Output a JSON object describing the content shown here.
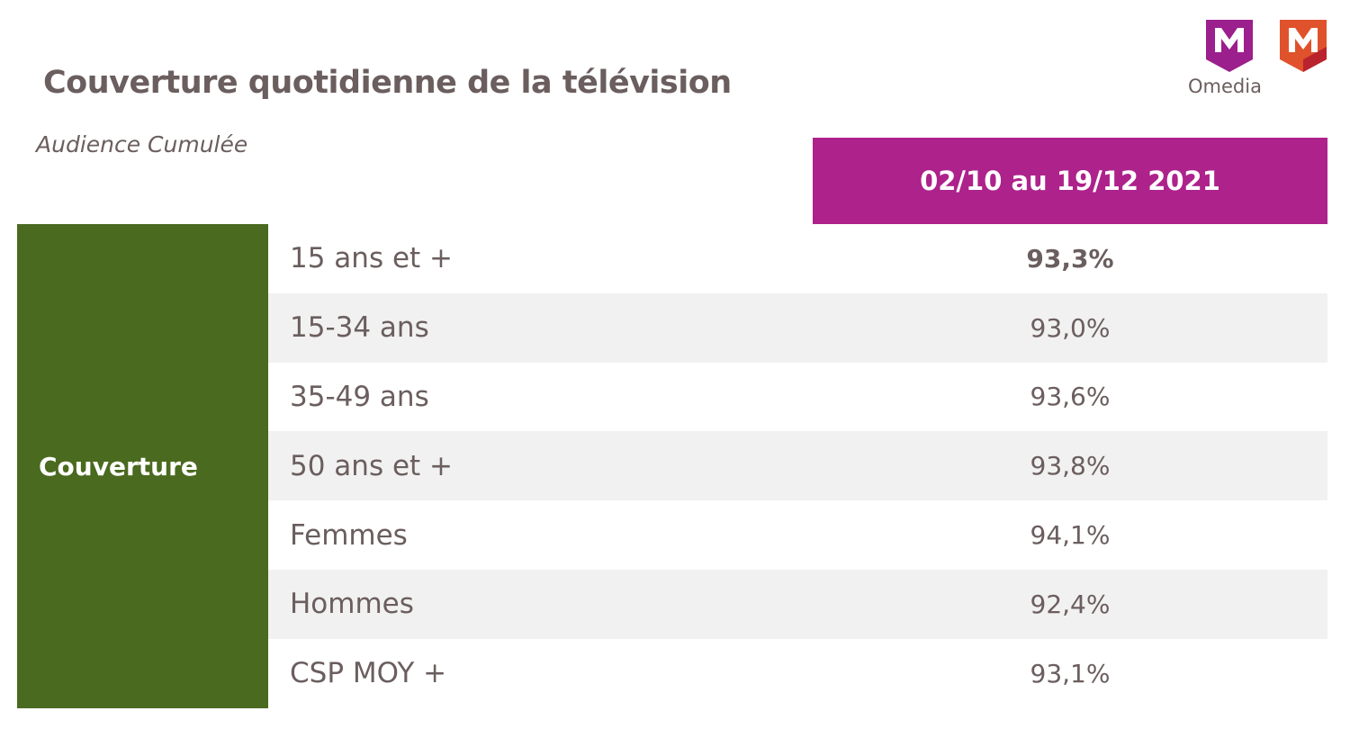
{
  "title": "Couverture quotidienne de la télévision",
  "subtitle": "Audience Cumulée",
  "logo": {
    "name": "Omedia",
    "colors": {
      "primary": "#9b1f8c",
      "secondary": "#e0522b"
    }
  },
  "colors": {
    "header": "#ad228b",
    "group": "#4a6a1f",
    "row_shade": "#f2f1f1",
    "text": "#6b5e5e"
  },
  "chart_data": {
    "type": "table",
    "column_header": "02/10 au 19/12 2021",
    "group_label": "Couverture",
    "rows": [
      {
        "label": "15 ans et +",
        "value": "93,3%",
        "bold": true
      },
      {
        "label": "15-34 ans",
        "value": "93,0%",
        "bold": false
      },
      {
        "label": "35-49 ans",
        "value": "93,6%",
        "bold": false
      },
      {
        "label": "50 ans et +",
        "value": "93,8%",
        "bold": false
      },
      {
        "label": "Femmes",
        "value": "94,1%",
        "bold": false
      },
      {
        "label": "Hommes",
        "value": "92,4%",
        "bold": false
      },
      {
        "label": "CSP MOY +",
        "value": "93,1%",
        "bold": false
      }
    ]
  }
}
